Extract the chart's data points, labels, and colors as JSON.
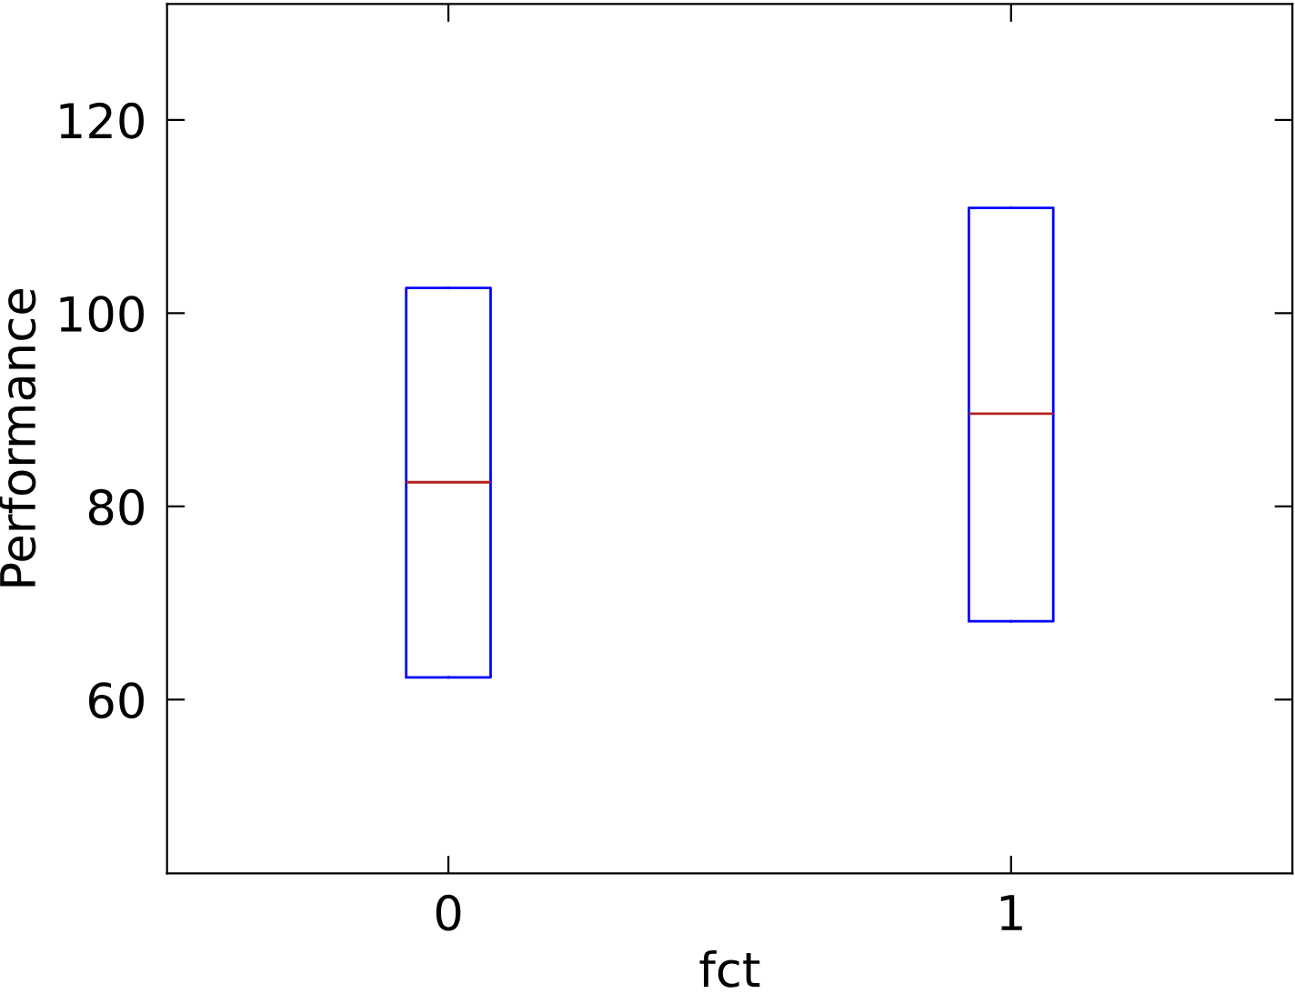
{
  "chart_data": {
    "type": "box",
    "xlabel": "fct",
    "ylabel": "Performance",
    "categories": [
      "0",
      "1"
    ],
    "boxes": [
      {
        "low": 62.3,
        "q1": 62.3,
        "median": 82.5,
        "q3": 102.6,
        "high": 102.6
      },
      {
        "low": 68.1,
        "q1": 68.1,
        "median": 89.6,
        "q3": 110.9,
        "high": 110.9
      }
    ],
    "color": "#0000ff",
    "ylim": [
      42,
      132
    ],
    "yticks": [
      60,
      80,
      100,
      120
    ],
    "grid": false,
    "legend": false
  }
}
